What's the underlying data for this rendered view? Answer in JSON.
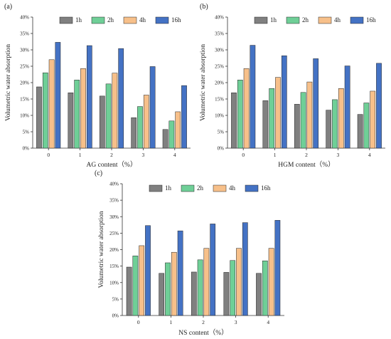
{
  "chart_data": [
    {
      "panel": "(a)",
      "type": "bar",
      "categories": [
        "0",
        "1",
        "2",
        "3",
        "4"
      ],
      "xlabel": "AG content（%）",
      "ylabel": "Volumetric water absorption",
      "ylim": [
        0,
        40
      ],
      "yticks": [
        "0%",
        "5%",
        "10%",
        "15%",
        "20%",
        "25%",
        "30%",
        "35%",
        "40%"
      ],
      "legend": "top",
      "series": [
        {
          "name": "1h",
          "color": "#808080",
          "values": [
            18.7,
            16.9,
            15.9,
            9.3,
            5.7
          ]
        },
        {
          "name": "2h",
          "color": "#6fcf97",
          "values": [
            23.0,
            20.8,
            19.6,
            12.7,
            8.3
          ]
        },
        {
          "name": "4h",
          "color": "#f7c08a",
          "values": [
            27.0,
            24.3,
            22.9,
            16.2,
            11.1
          ]
        },
        {
          "name": "16h",
          "color": "#4472c4",
          "values": [
            32.3,
            31.3,
            30.4,
            24.9,
            19.1
          ]
        }
      ]
    },
    {
      "panel": "(b)",
      "type": "bar",
      "categories": [
        "0",
        "1",
        "2",
        "3",
        "4"
      ],
      "xlabel": "HGM content（%）",
      "ylabel": "Volumetric water absorption",
      "ylim": [
        0,
        40
      ],
      "yticks": [
        "0%",
        "5%",
        "10%",
        "15%",
        "20%",
        "25%",
        "30%",
        "35%",
        "40%"
      ],
      "legend": "top",
      "series": [
        {
          "name": "1h",
          "color": "#808080",
          "values": [
            16.9,
            14.5,
            13.4,
            11.6,
            10.3
          ]
        },
        {
          "name": "2h",
          "color": "#6fcf97",
          "values": [
            20.8,
            18.2,
            17.0,
            14.8,
            13.8
          ]
        },
        {
          "name": "4h",
          "color": "#f7c08a",
          "values": [
            24.3,
            21.6,
            20.2,
            18.2,
            17.4
          ]
        },
        {
          "name": "16h",
          "color": "#4472c4",
          "values": [
            31.4,
            28.2,
            27.3,
            25.1,
            25.9
          ]
        }
      ]
    },
    {
      "panel": "(c)",
      "type": "bar",
      "categories": [
        "0",
        "1",
        "2",
        "3",
        "4"
      ],
      "xlabel": "NS content（%）",
      "ylabel": "Volumetric water absorption",
      "ylim": [
        0,
        40
      ],
      "yticks": [
        "0%",
        "5%",
        "10%",
        "15%",
        "20%",
        "25%",
        "30%",
        "35%",
        "40%"
      ],
      "legend": "top",
      "series": [
        {
          "name": "1h",
          "color": "#808080",
          "values": [
            14.7,
            12.8,
            13.2,
            13.1,
            12.8
          ]
        },
        {
          "name": "2h",
          "color": "#6fcf97",
          "values": [
            18.1,
            16.0,
            16.9,
            16.7,
            16.6
          ]
        },
        {
          "name": "4h",
          "color": "#f7c08a",
          "values": [
            21.2,
            19.2,
            20.4,
            20.4,
            20.4
          ]
        },
        {
          "name": "16h",
          "color": "#4472c4",
          "values": [
            27.3,
            25.7,
            27.8,
            28.2,
            28.9
          ]
        }
      ]
    }
  ]
}
